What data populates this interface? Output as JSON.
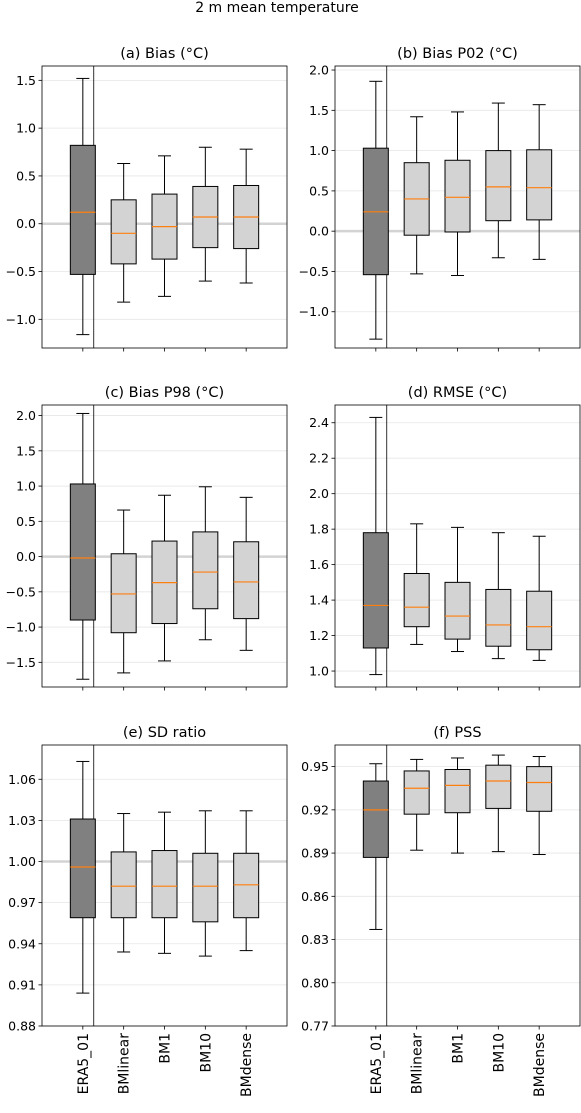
{
  "suptitle": "2 m mean temperature",
  "colors": {
    "reference_box": "#808080",
    "model_box": "#d3d3d3",
    "median": "#ff7f0e",
    "zero_line": "#d3d3d3",
    "grid": "#e6e6e6",
    "edge": "#000000"
  },
  "chart_data": [
    {
      "type": "box",
      "title": "(a) Bias (°C)",
      "categories": [
        "ERA5_01",
        "BMlinear",
        "BM1",
        "BM10",
        "BMdense"
      ],
      "ylim": [
        -1.3,
        1.65
      ],
      "yticks": [
        -1.0,
        -0.5,
        0.0,
        0.5,
        1.0,
        1.5
      ],
      "yticklabels": [
        "−1.0",
        "−0.5",
        "0.0",
        "0.5",
        "1.0",
        "1.5"
      ],
      "hline": 0.0,
      "boxes": [
        {
          "whislo": -1.16,
          "q1": -0.53,
          "med": 0.12,
          "q3": 0.82,
          "whishi": 1.52
        },
        {
          "whislo": -0.82,
          "q1": -0.42,
          "med": -0.1,
          "q3": 0.25,
          "whishi": 0.63
        },
        {
          "whislo": -0.76,
          "q1": -0.37,
          "med": -0.03,
          "q3": 0.31,
          "whishi": 0.71
        },
        {
          "whislo": -0.6,
          "q1": -0.25,
          "med": 0.07,
          "q3": 0.39,
          "whishi": 0.8
        },
        {
          "whislo": -0.62,
          "q1": -0.26,
          "med": 0.07,
          "q3": 0.4,
          "whishi": 0.78
        }
      ]
    },
    {
      "type": "box",
      "title": "(b) Bias P02 (°C)",
      "categories": [
        "ERA5_01",
        "BMlinear",
        "BM1",
        "BM10",
        "BMdense"
      ],
      "ylim": [
        -1.45,
        2.05
      ],
      "yticks": [
        -1.0,
        -0.5,
        0.0,
        0.5,
        1.0,
        1.5,
        2.0
      ],
      "yticklabels": [
        "−1.0",
        "−0.5",
        "0.0",
        "0.5",
        "1.0",
        "1.5",
        "2.0"
      ],
      "hline": 0.0,
      "boxes": [
        {
          "whislo": -1.34,
          "q1": -0.54,
          "med": 0.24,
          "q3": 1.03,
          "whishi": 1.86
        },
        {
          "whislo": -0.53,
          "q1": -0.05,
          "med": 0.4,
          "q3": 0.85,
          "whishi": 1.42
        },
        {
          "whislo": -0.55,
          "q1": -0.01,
          "med": 0.42,
          "q3": 0.88,
          "whishi": 1.48
        },
        {
          "whislo": -0.33,
          "q1": 0.13,
          "med": 0.55,
          "q3": 1.0,
          "whishi": 1.59
        },
        {
          "whislo": -0.35,
          "q1": 0.14,
          "med": 0.54,
          "q3": 1.01,
          "whishi": 1.57
        }
      ]
    },
    {
      "type": "box",
      "title": "(c) Bias P98 (°C)",
      "categories": [
        "ERA5_01",
        "BMlinear",
        "BM1",
        "BM10",
        "BMdense"
      ],
      "ylim": [
        -1.85,
        2.15
      ],
      "yticks": [
        -1.5,
        -1.0,
        -0.5,
        0.0,
        0.5,
        1.0,
        1.5,
        2.0
      ],
      "yticklabels": [
        "−1.5",
        "−1.0",
        "−0.5",
        "0.0",
        "0.5",
        "1.0",
        "1.5",
        "2.0"
      ],
      "hline": 0.0,
      "boxes": [
        {
          "whislo": -1.74,
          "q1": -0.9,
          "med": -0.02,
          "q3": 1.03,
          "whishi": 2.03
        },
        {
          "whislo": -1.65,
          "q1": -1.08,
          "med": -0.53,
          "q3": 0.04,
          "whishi": 0.66
        },
        {
          "whislo": -1.48,
          "q1": -0.95,
          "med": -0.37,
          "q3": 0.22,
          "whishi": 0.87
        },
        {
          "whislo": -1.18,
          "q1": -0.74,
          "med": -0.22,
          "q3": 0.35,
          "whishi": 0.99
        },
        {
          "whislo": -1.33,
          "q1": -0.88,
          "med": -0.36,
          "q3": 0.21,
          "whishi": 0.84
        }
      ]
    },
    {
      "type": "box",
      "title": "(d) RMSE (°C)",
      "categories": [
        "ERA5_01",
        "BMlinear",
        "BM1",
        "BM10",
        "BMdense"
      ],
      "ylim": [
        0.91,
        2.5
      ],
      "yticks": [
        1.0,
        1.2,
        1.4,
        1.6,
        1.8,
        2.0,
        2.2,
        2.4
      ],
      "yticklabels": [
        "1.0",
        "1.2",
        "1.4",
        "1.6",
        "1.8",
        "2.0",
        "2.2",
        "2.4"
      ],
      "hline": null,
      "boxes": [
        {
          "whislo": 0.98,
          "q1": 1.13,
          "med": 1.37,
          "q3": 1.78,
          "whishi": 2.43
        },
        {
          "whislo": 1.15,
          "q1": 1.25,
          "med": 1.36,
          "q3": 1.55,
          "whishi": 1.83
        },
        {
          "whislo": 1.11,
          "q1": 1.18,
          "med": 1.31,
          "q3": 1.5,
          "whishi": 1.81
        },
        {
          "whislo": 1.07,
          "q1": 1.14,
          "med": 1.26,
          "q3": 1.46,
          "whishi": 1.78
        },
        {
          "whislo": 1.06,
          "q1": 1.12,
          "med": 1.25,
          "q3": 1.45,
          "whishi": 1.76
        }
      ]
    },
    {
      "type": "box",
      "title": "(e) SD ratio",
      "categories": [
        "ERA5_01",
        "BMlinear",
        "BM1",
        "BM10",
        "BMdense"
      ],
      "ylim": [
        0.88,
        1.085
      ],
      "yticks": [
        0.88,
        0.91,
        0.94,
        0.97,
        1.0,
        1.03,
        1.06
      ],
      "yticklabels": [
        "0.88",
        "0.91",
        "0.94",
        "0.97",
        "1.00",
        "1.03",
        "1.06"
      ],
      "hline": 1.0,
      "boxes": [
        {
          "whislo": 0.904,
          "q1": 0.959,
          "med": 0.996,
          "q3": 1.031,
          "whishi": 1.073
        },
        {
          "whislo": 0.934,
          "q1": 0.959,
          "med": 0.982,
          "q3": 1.007,
          "whishi": 1.035
        },
        {
          "whislo": 0.933,
          "q1": 0.959,
          "med": 0.982,
          "q3": 1.008,
          "whishi": 1.036
        },
        {
          "whislo": 0.931,
          "q1": 0.956,
          "med": 0.982,
          "q3": 1.006,
          "whishi": 1.037
        },
        {
          "whislo": 0.935,
          "q1": 0.959,
          "med": 0.983,
          "q3": 1.006,
          "whishi": 1.037
        }
      ]
    },
    {
      "type": "box",
      "title": "(f) PSS",
      "categories": [
        "ERA5_01",
        "BMlinear",
        "BM1",
        "BM10",
        "BMdense"
      ],
      "ylim": [
        0.77,
        0.965
      ],
      "yticks": [
        0.77,
        0.8,
        0.83,
        0.86,
        0.89,
        0.92,
        0.95
      ],
      "yticklabels": [
        "0.77",
        "0.80",
        "0.83",
        "0.86",
        "0.89",
        "0.92",
        "0.95"
      ],
      "hline": null,
      "boxes": [
        {
          "whislo": 0.837,
          "q1": 0.887,
          "med": 0.92,
          "q3": 0.94,
          "whishi": 0.952
        },
        {
          "whislo": 0.892,
          "q1": 0.917,
          "med": 0.935,
          "q3": 0.947,
          "whishi": 0.955
        },
        {
          "whislo": 0.89,
          "q1": 0.918,
          "med": 0.937,
          "q3": 0.948,
          "whishi": 0.956
        },
        {
          "whislo": 0.891,
          "q1": 0.921,
          "med": 0.94,
          "q3": 0.951,
          "whishi": 0.958
        },
        {
          "whislo": 0.889,
          "q1": 0.919,
          "med": 0.939,
          "q3": 0.95,
          "whishi": 0.957
        }
      ]
    }
  ]
}
